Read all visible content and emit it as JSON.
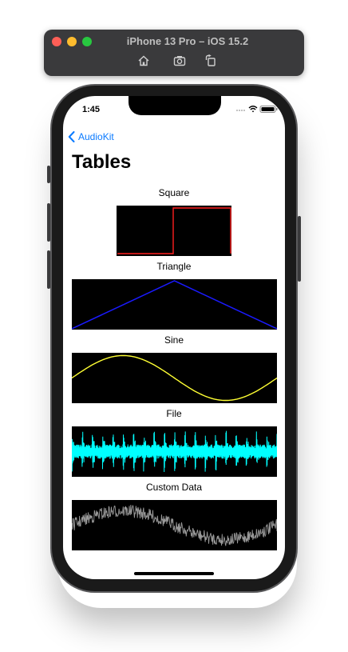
{
  "window": {
    "title": "iPhone 13 Pro – iOS 15.2",
    "toolbar_icons": [
      "home-icon",
      "screenshot-icon",
      "rotate-icon"
    ]
  },
  "status_bar": {
    "time": "1:45",
    "icons": [
      "signal-icon",
      "wifi-icon",
      "battery-icon"
    ]
  },
  "nav": {
    "back_label": "AudioKit"
  },
  "page": {
    "title": "Tables"
  },
  "tables": [
    {
      "label": "Square",
      "color": "#ff2020"
    },
    {
      "label": "Triangle",
      "color": "#1a1aff"
    },
    {
      "label": "Sine",
      "color": "#ffff33"
    },
    {
      "label": "File",
      "color": "#00ffff"
    },
    {
      "label": "Custom Data",
      "color": "#9a9a9a"
    }
  ],
  "colors": {
    "accent": "#0a7aff",
    "plot_background": "#000000"
  }
}
